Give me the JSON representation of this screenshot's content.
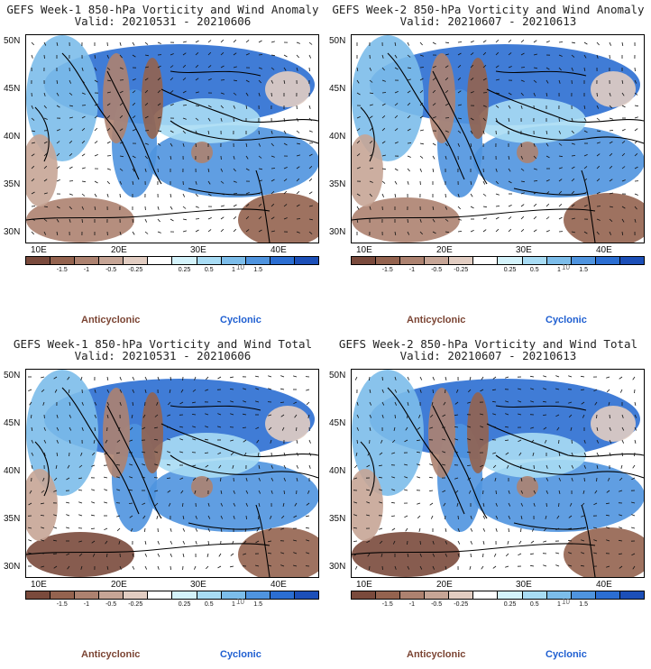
{
  "panels": [
    {
      "title": "GEFS Week-1 850-hPa Vorticity and Wind Anomaly",
      "valid": "Valid: 20210531 - 20210606"
    },
    {
      "title": "GEFS Week-2 850-hPa Vorticity and Wind Anomaly",
      "valid": "Valid: 20210607 - 20210613"
    },
    {
      "title": "GEFS Week-1 850-hPa Vorticity and Wind Total",
      "valid": "Valid: 20210531 - 20210606"
    },
    {
      "title": "GEFS Week-2 850-hPa Vorticity and Wind Total",
      "valid": "Valid: 20210607 - 20210613"
    }
  ],
  "lat_labels": [
    "50N",
    "45N",
    "40N",
    "35N",
    "30N"
  ],
  "lon_labels": [
    "10E",
    "20E",
    "30E",
    "40E"
  ],
  "colorbar": {
    "tick_labels": [
      "-1.5",
      "-1",
      "-0.5",
      "-0.25",
      "0.25",
      "0.5",
      "1",
      "1.5"
    ],
    "unit_label": "10",
    "colors": [
      "#7a4a3c",
      "#94634f",
      "#ad8270",
      "#c6a596",
      "#e2cdc2",
      "#ffffff",
      "#d4f3fb",
      "#a8dcf4",
      "#7cbdea",
      "#4f94df",
      "#2b6ed2",
      "#1c4fb8"
    ]
  },
  "legend": {
    "anticyclonic": "Anticyclonic",
    "cyclonic": "Cyclonic"
  },
  "colors": {
    "anticyclonic": "#7b4433",
    "cyclonic": "#1f5fd1"
  }
}
